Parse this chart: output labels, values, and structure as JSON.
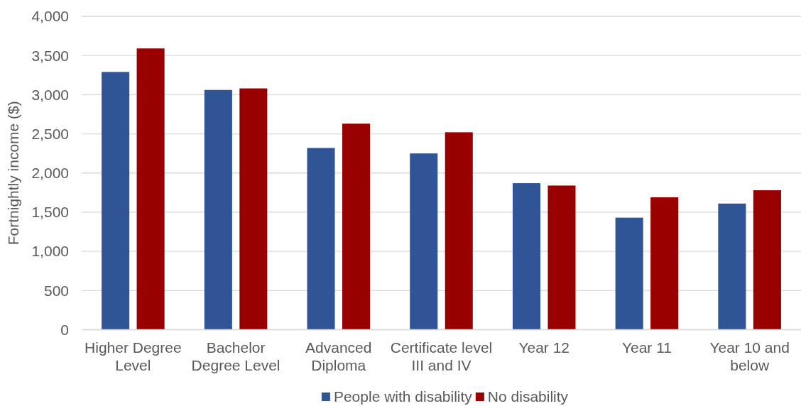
{
  "chart_data": {
    "type": "bar",
    "categories": [
      "Higher Degree Level",
      "Bachelor Degree Level",
      "Advanced Diploma",
      "Certificate level III and IV",
      "Year 12",
      "Year 11",
      "Year 10 and below"
    ],
    "series": [
      {
        "name": "People with disability",
        "color": "#2f5597",
        "values": [
          3290,
          3060,
          2320,
          2250,
          1870,
          1430,
          1610
        ]
      },
      {
        "name": "No disability",
        "color": "#990000",
        "values": [
          3590,
          3080,
          2630,
          2520,
          1840,
          1690,
          1780
        ]
      }
    ],
    "ylabel": "Fortnightly income ($)",
    "ylim": [
      0,
      4000
    ],
    "yticks": [
      0,
      500,
      {
        "value": 1000,
        "label": "1,000"
      },
      {
        "value": 1500,
        "label": "1,500"
      },
      {
        "value": 2000,
        "label": "2,000"
      },
      {
        "value": 2500,
        "label": "2,500"
      },
      {
        "value": 3000,
        "label": "3,000"
      },
      {
        "value": 3500,
        "label": "3,500"
      },
      {
        "value": 4000,
        "label": "4,000"
      }
    ],
    "grid": "y",
    "legend": "bottom"
  }
}
